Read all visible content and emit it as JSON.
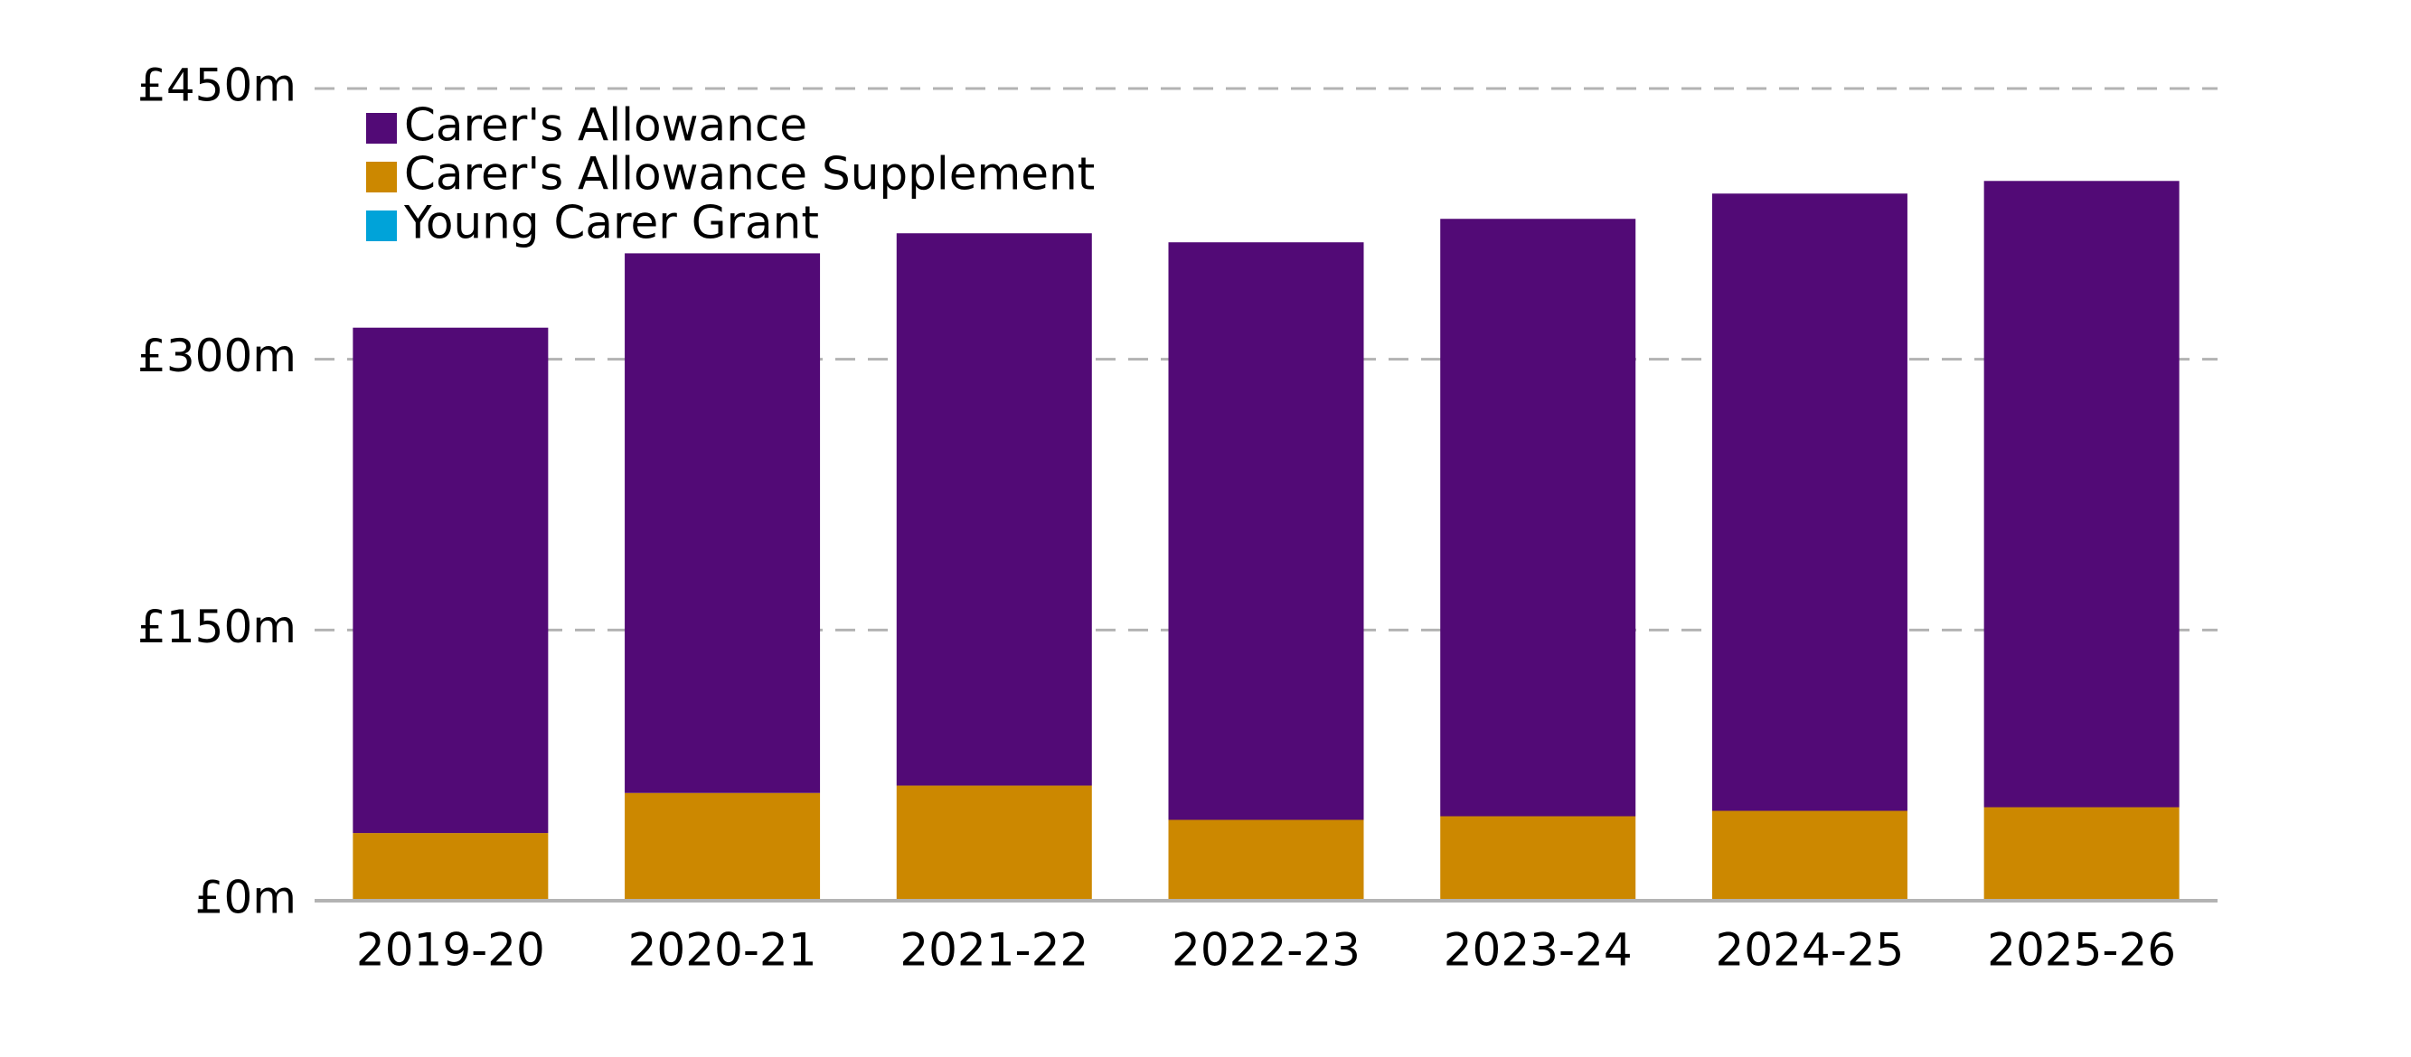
{
  "chart_data": {
    "type": "bar",
    "stacked": true,
    "title": "",
    "xlabel": "",
    "ylabel": "",
    "categories": [
      "2019-20",
      "2020-21",
      "2021-22",
      "2022-23",
      "2023-24",
      "2024-25",
      "2025-26"
    ],
    "series": [
      {
        "name": "Carer's Allowance",
        "color": "#520a76",
        "values": [
          280,
          299,
          306,
          320,
          331,
          342,
          347
        ]
      },
      {
        "name": "Carer's Allowance Supplement",
        "color": "#cc8800",
        "values": [
          37,
          59,
          63,
          44,
          46,
          49,
          51
        ]
      },
      {
        "name": "Young Carer Grant",
        "color": "#00a3d9",
        "values": [
          0.5,
          0.7,
          0.8,
          0.8,
          0.8,
          0.8,
          0.8
        ]
      }
    ],
    "yticks": [
      {
        "value": 0,
        "label": "£0m"
      },
      {
        "value": 150,
        "label": "£150m"
      },
      {
        "value": 300,
        "label": "£300m"
      },
      {
        "value": 450,
        "label": "£450m"
      }
    ],
    "ylim": [
      0,
      450
    ],
    "grid": true,
    "legend_position": "top-left",
    "colors": {
      "grid": "#b3b3b3",
      "axis": "#b3b3b3",
      "text": "#000000"
    }
  }
}
